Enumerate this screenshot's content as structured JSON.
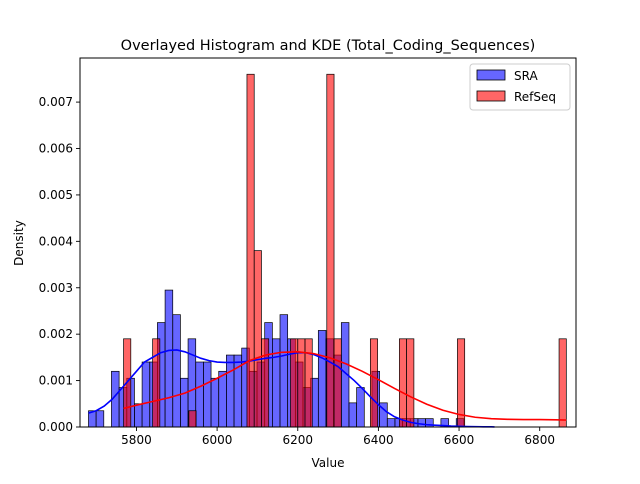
{
  "chart_data": {
    "type": "histogram",
    "title": "Overlayed Histogram and KDE (Total_Coding_Sequences)",
    "xlabel": "Value",
    "ylabel": "Density",
    "xlim": [
      5660,
      6890
    ],
    "ylim": [
      0,
      0.00795
    ],
    "x_ticks": [
      5800,
      6000,
      6200,
      6400,
      6600,
      6800
    ],
    "x_tick_labels": [
      "5800",
      "6000",
      "6200",
      "6400",
      "6600",
      "6800"
    ],
    "y_ticks": [
      0.0,
      0.001,
      0.002,
      0.003,
      0.004,
      0.005,
      0.006,
      0.007
    ],
    "y_tick_labels": [
      "0.000",
      "0.001",
      "0.002",
      "0.003",
      "0.004",
      "0.005",
      "0.006",
      "0.007"
    ],
    "legend_position": "top-right",
    "grid": false,
    "series": [
      {
        "name": "SRA",
        "color": "#0000ff",
        "bin_edges": [
          5681,
          5700,
          5719,
          5738,
          5757,
          5776,
          5795,
          5814,
          5833,
          5852,
          5871,
          5890,
          5909,
          5928,
          5947,
          5966,
          5985,
          6004,
          6023,
          6042,
          6061,
          6080,
          6099,
          6118,
          6137,
          6156,
          6175,
          6194,
          6213,
          6232,
          6251,
          6270,
          6289,
          6308,
          6327,
          6346,
          6365,
          6384,
          6403,
          6422,
          6441,
          6460,
          6479,
          6498,
          6517,
          6536,
          6555,
          6574,
          6593,
          6612,
          6631,
          6650,
          6669,
          6688
        ],
        "densities": [
          0.00035,
          0.00035,
          0,
          0.0012,
          0.00085,
          0.00105,
          0.0005,
          0.0014,
          0.0014,
          0.00225,
          0.00295,
          0.00242,
          0.00105,
          0.0019,
          0.0014,
          0.0014,
          0.00105,
          0.0012,
          0.00155,
          0.00155,
          0.0017,
          0.0012,
          0.0014,
          0.00225,
          0.0019,
          0.00242,
          0.0019,
          0.0014,
          0.00085,
          0.00105,
          0.00208,
          0.0019,
          0.00155,
          0.00225,
          0.00052,
          0.00085,
          0,
          0.0012,
          0.00052,
          0.00018,
          0.00018,
          0.00018,
          0.00018,
          0.00018,
          0.00018,
          0,
          0.00018,
          0,
          0.00018,
          0,
          0,
          0,
          0
        ],
        "kde_x": [
          5681,
          5700,
          5720,
          5740,
          5760,
          5780,
          5800,
          5820,
          5840,
          5860,
          5880,
          5900,
          5920,
          5940,
          5960,
          5980,
          6000,
          6020,
          6040,
          6060,
          6080,
          6100,
          6120,
          6140,
          6160,
          6180,
          6200,
          6220,
          6240,
          6260,
          6280,
          6300,
          6320,
          6340,
          6360,
          6380,
          6400,
          6420,
          6440,
          6460,
          6480,
          6500,
          6520,
          6540,
          6560,
          6580,
          6600,
          6620,
          6640,
          6660,
          6680,
          6688
        ],
        "kde_y": [
          0.0003,
          0.00035,
          0.00045,
          0.0006,
          0.0008,
          0.001,
          0.0012,
          0.0014,
          0.0015,
          0.0016,
          0.00165,
          0.00166,
          0.00162,
          0.00155,
          0.00148,
          0.00143,
          0.0014,
          0.00139,
          0.00139,
          0.0014,
          0.00142,
          0.00145,
          0.00148,
          0.0015,
          0.00153,
          0.00157,
          0.0016,
          0.0016,
          0.00156,
          0.00149,
          0.0014,
          0.0013,
          0.00115,
          0.001,
          0.00083,
          0.00065,
          0.00048,
          0.00033,
          0.00022,
          0.00015,
          0.0001,
          7e-05,
          5e-05,
          4e-05,
          3e-05,
          2e-05,
          1.5e-05,
          1e-05,
          8e-06,
          5e-06,
          3e-06,
          2e-06
        ]
      },
      {
        "name": "RefSeq",
        "color": "#ff0000",
        "bin_edges": [
          5768,
          5786,
          5804,
          5822,
          5840,
          5858,
          5876,
          5894,
          5912,
          5930,
          5948,
          5966,
          5984,
          6002,
          6020,
          6038,
          6056,
          6074,
          6092,
          6110,
          6128,
          6146,
          6164,
          6182,
          6200,
          6218,
          6236,
          6254,
          6272,
          6290,
          6308,
          6326,
          6344,
          6362,
          6380,
          6398,
          6416,
          6434,
          6452,
          6470,
          6488,
          6506,
          6524,
          6542,
          6560,
          6578,
          6596,
          6614,
          6632,
          6650,
          6668,
          6686,
          6704,
          6722,
          6740,
          6758,
          6776,
          6794,
          6812,
          6830,
          6848,
          6866
        ],
        "densities": [
          0.0019,
          0,
          0,
          0,
          0.0019,
          0,
          0,
          0,
          0,
          0.00035,
          0,
          0,
          0,
          0,
          0,
          0,
          0,
          0.0076,
          0.0038,
          0.0019,
          0,
          0,
          0,
          0.0019,
          0.0019,
          0.0019,
          0,
          0,
          0.0076,
          0.0019,
          0,
          0,
          0,
          0,
          0.0019,
          0,
          0,
          0,
          0.0019,
          0.0019,
          0,
          0,
          0,
          0,
          0,
          0,
          0.0019,
          0,
          0,
          0,
          0,
          0,
          0,
          0,
          0,
          0,
          0,
          0,
          0,
          0,
          0.0019
        ],
        "kde_x": [
          5768,
          5800,
          5840,
          5880,
          5920,
          5960,
          6000,
          6040,
          6080,
          6120,
          6160,
          6200,
          6240,
          6280,
          6320,
          6360,
          6400,
          6440,
          6480,
          6520,
          6560,
          6600,
          6640,
          6680,
          6720,
          6760,
          6800,
          6840,
          6866
        ],
        "kde_y": [
          0.0004,
          0.00047,
          0.00055,
          0.00063,
          0.00073,
          0.00088,
          0.00105,
          0.00123,
          0.00143,
          0.00155,
          0.00161,
          0.00162,
          0.00158,
          0.00149,
          0.00136,
          0.0012,
          0.00102,
          0.00083,
          0.00065,
          0.00049,
          0.00036,
          0.00027,
          0.00021,
          0.00018,
          0.000165,
          0.00016,
          0.00016,
          0.000155,
          0.00015
        ]
      }
    ]
  }
}
